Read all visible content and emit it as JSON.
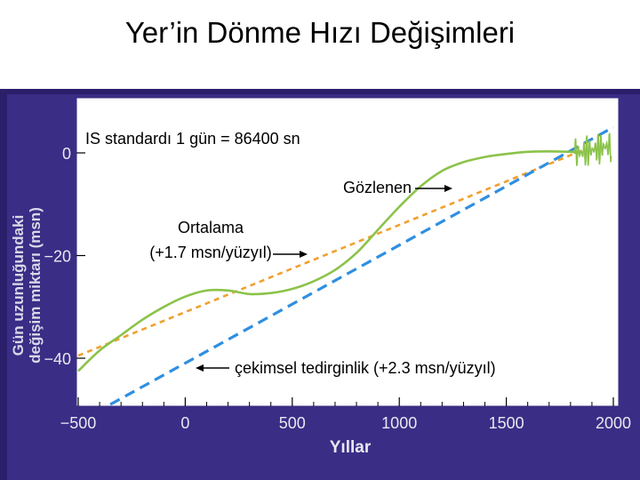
{
  "slide_title": "Yer’in Dönme Hızı Değişimleri",
  "colors": {
    "background_frame": "#2b1f6b",
    "plot_area": "#ffffff",
    "observed": "#8bc34a",
    "average": "#f0a030",
    "tidal": "#2f8fe0"
  },
  "chart_data": {
    "type": "line",
    "title": "",
    "xlabel": "Yıllar",
    "ylabel_lines": [
      "Gün uzunluğundaki",
      "değişim miktarı (msn)"
    ],
    "xlim": [
      -500,
      2000
    ],
    "ylim": [
      -50,
      10
    ],
    "x_ticks": [
      -500,
      0,
      500,
      1000,
      1500,
      2000
    ],
    "x_tick_labels": [
      "−500",
      "0",
      "500",
      "1000",
      "1500",
      "2000"
    ],
    "y_ticks": [
      0,
      -20,
      -40
    ],
    "y_tick_labels": [
      "0",
      "−20",
      "−40"
    ],
    "grid": false,
    "series": [
      {
        "name": "Gözlenen",
        "style": "solid",
        "x": [
          -500,
          -400,
          -300,
          -200,
          -100,
          0,
          100,
          200,
          300,
          400,
          500,
          600,
          700,
          800,
          900,
          1000,
          1100,
          1200,
          1300,
          1400,
          1500,
          1600,
          1700,
          1800,
          1850
        ],
        "y": [
          -42.5,
          -38.5,
          -35.5,
          -32.5,
          -30.0,
          -28.0,
          -26.8,
          -26.8,
          -27.5,
          -27.3,
          -26.5,
          -25.0,
          -22.8,
          -19.5,
          -15.0,
          -10.5,
          -6.5,
          -3.5,
          -1.8,
          -0.8,
          -0.2,
          0.2,
          0.3,
          0.2,
          0.0
        ]
      },
      {
        "name": "Ortalama (+1.7 msn/yüzyıl)",
        "style": "dashed",
        "x": [
          -500,
          1850
        ],
        "y": [
          -39.5,
          0.4
        ]
      },
      {
        "name": "çekimsel tedirginlik (+2.3 msn/yüzyıl)",
        "style": "dashed",
        "x": [
          -350,
          2000
        ],
        "y": [
          -49.0,
          5.0
        ]
      }
    ],
    "fluctuation_x_range": [
      1820,
      1990
    ],
    "annotations": {
      "standard": "IS standardı 1 gün = 86400 sn",
      "observed_label": "Gözlenen",
      "average_label_line1": "Ortalama",
      "average_label_line2": "(+1.7 msn/yüzyıl)",
      "tidal_label": "çekimsel tedirginlik (+2.3 msn/yüzyıl)"
    }
  }
}
